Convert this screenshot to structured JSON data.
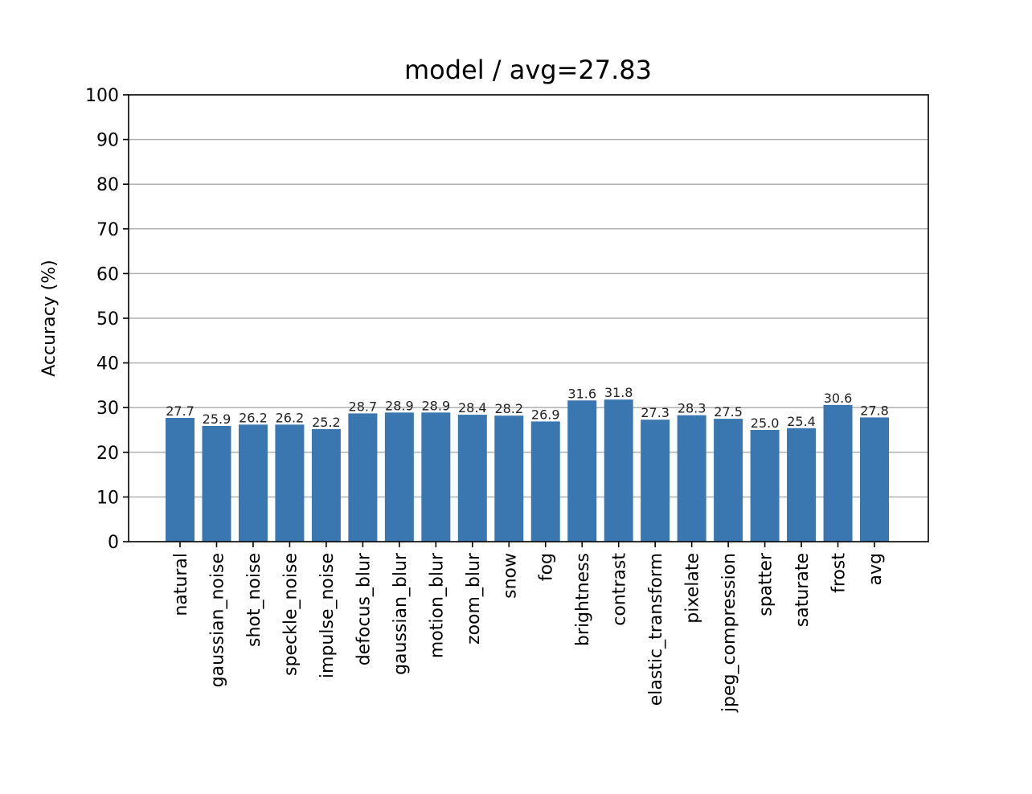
{
  "chart_data": {
    "type": "bar",
    "title": "model / avg=27.83",
    "xlabel": "",
    "ylabel": "Accuracy (%)",
    "ylim": [
      0,
      100
    ],
    "yticks": [
      0,
      10,
      20,
      30,
      40,
      50,
      60,
      70,
      80,
      90,
      100
    ],
    "grid": "y",
    "bar_color": "#3a77b0",
    "categories": [
      "natural",
      "gaussian_noise",
      "shot_noise",
      "speckle_noise",
      "impulse_noise",
      "defocus_blur",
      "gaussian_blur",
      "motion_blur",
      "zoom_blur",
      "snow",
      "fog",
      "brightness",
      "contrast",
      "elastic_transform",
      "pixelate",
      "jpeg_compression",
      "spatter",
      "saturate",
      "frost",
      "avg"
    ],
    "values": [
      27.7,
      25.9,
      26.2,
      26.2,
      25.2,
      28.7,
      28.9,
      28.9,
      28.4,
      28.2,
      26.9,
      31.6,
      31.8,
      27.3,
      28.3,
      27.5,
      25.0,
      25.4,
      30.6,
      27.8
    ],
    "value_labels": [
      "27.7",
      "25.9",
      "26.2",
      "26.2",
      "25.2",
      "28.7",
      "28.9",
      "28.9",
      "28.4",
      "28.2",
      "26.9",
      "31.6",
      "31.8",
      "27.3",
      "28.3",
      "27.5",
      "25.0",
      "25.4",
      "30.6",
      "27.8"
    ]
  }
}
